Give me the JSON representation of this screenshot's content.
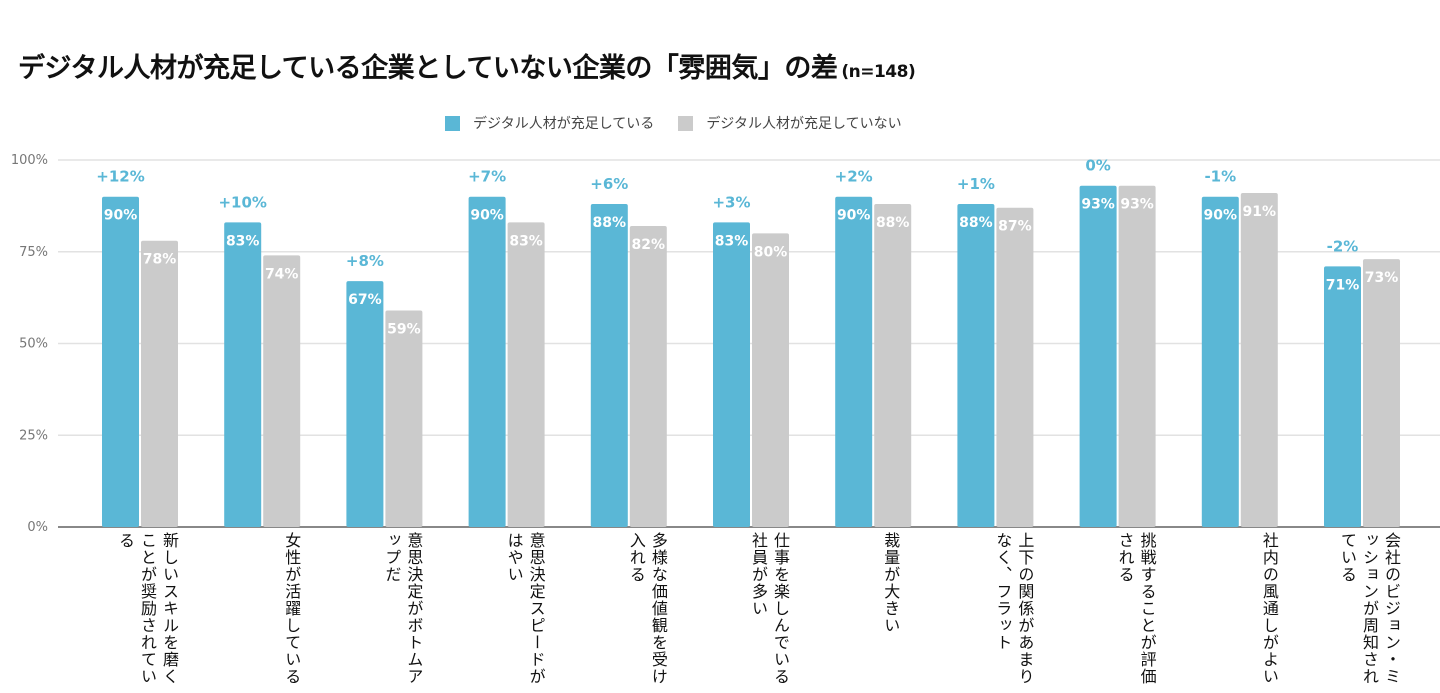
{
  "title": "デジタル人材が充足している企業としていない企業の「雰囲気」の差",
  "sample_note": "(n=148)",
  "legend": [
    {
      "label": "デジタル人材が充足している",
      "color": "#5ab7d6"
    },
    {
      "label": "デジタル人材が充足していない",
      "color": "#cbcbcb"
    }
  ],
  "chart_data": {
    "type": "bar",
    "title": "デジタル人材が充足している企業としていない企業の「雰囲気」の差 (n=148)",
    "xlabel": "",
    "ylabel": "",
    "ylim": [
      0,
      100
    ],
    "yticks": [
      "0%",
      "25%",
      "50%",
      "75%",
      "100%"
    ],
    "grid": true,
    "legend_position": "top-center",
    "categories": [
      [
        "新しいスキルを",
        "磨くことが",
        "奨励されている"
      ],
      [
        "女性が",
        "活躍している"
      ],
      [
        "意思決定が",
        "ボトムアップだ"
      ],
      [
        "意思決定スピード",
        "がはやい"
      ],
      [
        "多様な価値観を",
        "受け入れる"
      ],
      [
        "仕事を楽しんで",
        "いる社員が多い"
      ],
      [
        "裁量が大きい"
      ],
      [
        "上下の関係が",
        "あまりなく、",
        "フラット"
      ],
      [
        "挑戦することが",
        "評価される"
      ],
      [
        "社内の風通しが",
        "よい"
      ],
      [
        "会社のビジョン・",
        "ミッションが",
        "周知されている"
      ]
    ],
    "series": [
      {
        "name": "デジタル人材が充足している",
        "color": "#5ab7d6",
        "values": [
          90,
          83,
          67,
          90,
          88,
          83,
          90,
          88,
          93,
          90,
          71
        ]
      },
      {
        "name": "デジタル人材が充足していない",
        "color": "#cbcbcb",
        "values": [
          78,
          74,
          59,
          83,
          82,
          80,
          88,
          87,
          93,
          91,
          73
        ]
      }
    ],
    "differences": [
      "+12%",
      "+10%",
      "+8%",
      "+7%",
      "+6%",
      "+3%",
      "+2%",
      "+1%",
      "0%",
      "-1%",
      "-2%"
    ]
  }
}
